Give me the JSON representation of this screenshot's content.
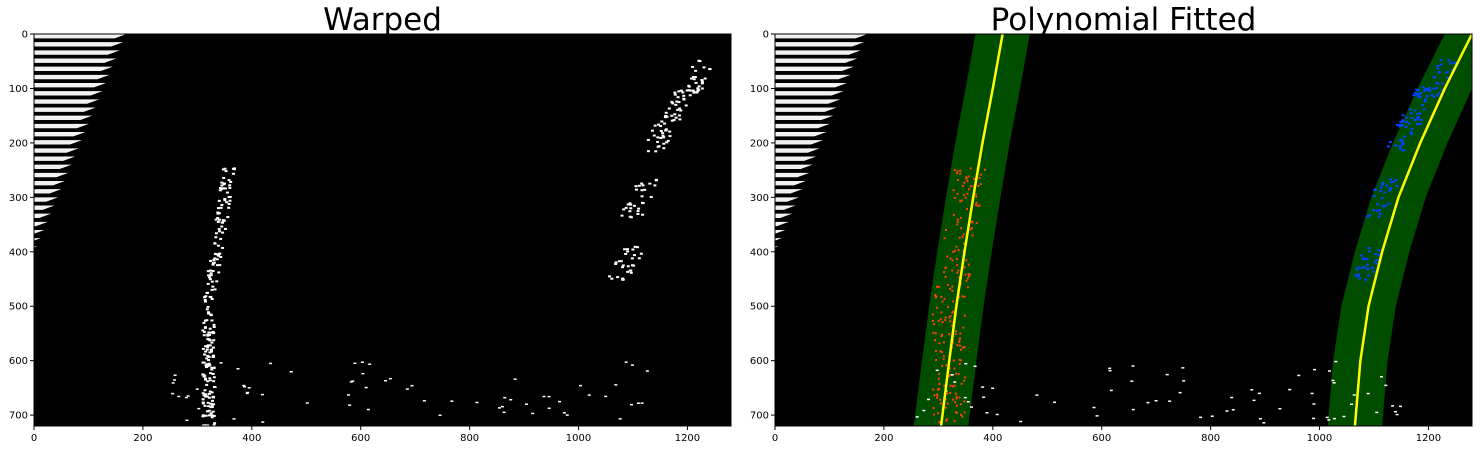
{
  "chart_data": [
    {
      "type": "image",
      "title": "Warped",
      "xlim": [
        0,
        1280
      ],
      "ylim": [
        720,
        0
      ],
      "xticks": [
        0,
        200,
        400,
        600,
        800,
        1000,
        1200
      ],
      "yticks": [
        0,
        100,
        200,
        300,
        400,
        500,
        600,
        700
      ],
      "background": "#000000",
      "content": "binary warped road image with white lane pixels"
    },
    {
      "type": "image",
      "title": "Polynomial Fitted",
      "xlim": [
        0,
        1280
      ],
      "ylim": [
        720,
        0
      ],
      "xticks": [
        0,
        200,
        400,
        600,
        800,
        1000,
        1200
      ],
      "yticks": [
        0,
        100,
        200,
        300,
        400,
        500,
        600,
        700
      ],
      "background": "#000000",
      "lane_window_margin": 50,
      "series": [
        {
          "role": "left-lane",
          "color": "#ff4400",
          "fit": [
            [
              720,
              305
            ],
            [
              600,
              320
            ],
            [
              500,
              333
            ],
            [
              400,
              348
            ],
            [
              300,
              364
            ],
            [
              200,
              381
            ],
            [
              100,
              400
            ],
            [
              0,
              418
            ]
          ]
        },
        {
          "role": "right-lane",
          "color": "#0044ff",
          "fit": [
            [
              720,
              1065
            ],
            [
              600,
              1075
            ],
            [
              500,
              1090
            ],
            [
              400,
              1115
            ],
            [
              300,
              1145
            ],
            [
              200,
              1185
            ],
            [
              100,
              1230
            ],
            [
              0,
              1280
            ]
          ]
        }
      ],
      "colors": {
        "window": "#004d00",
        "fit_line": "#ffff00"
      }
    }
  ]
}
